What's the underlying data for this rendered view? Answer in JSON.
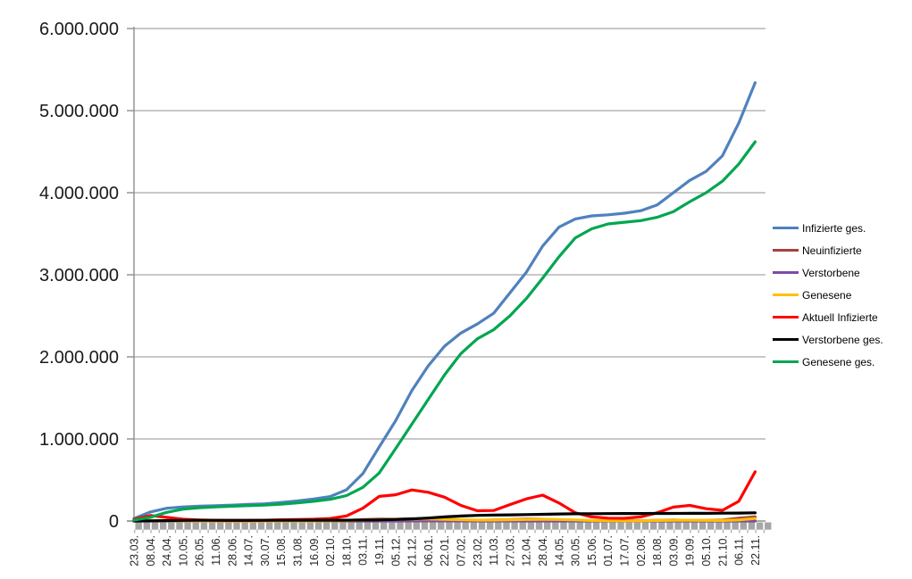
{
  "chart_data": {
    "type": "line",
    "title": "",
    "grid": "horizontal",
    "legend_position": "right",
    "axis_color": "#8f8f8f",
    "gridline_color": "#a6a6a6",
    "tick_band_color": "#a6a6a6",
    "y_axis": {
      "min": 0,
      "max": 6000000,
      "step": 1000000
    },
    "y_tick_labels": [
      "0",
      "1.000.000",
      "2.000.000",
      "3.000.000",
      "4.000.000",
      "5.000.000",
      "6.000.000"
    ],
    "x_labels": [
      "23.03.",
      "08.04.",
      "24.04.",
      "10.05.",
      "26.05.",
      "11.06.",
      "28.06.",
      "14.07.",
      "30.07.",
      "15.08.",
      "31.08.",
      "16.09.",
      "02.10.",
      "18.10.",
      "03.11.",
      "19.11.",
      "05.12.",
      "21.12.",
      "06.01.",
      "22.01.",
      "07.02.",
      "23.02.",
      "11.03.",
      "27.03.",
      "12.04.",
      "28.04.",
      "14.05.",
      "30.05.",
      "15.06.",
      "01.07.",
      "17.07.",
      "02.08.",
      "18.08.",
      "03.09.",
      "19.09.",
      "05.10.",
      "21.10.",
      "06.11.",
      "22.11."
    ],
    "series": [
      {
        "name": "Infizierte ges.",
        "color": "#4F81BD",
        "values": [
          30000,
          110000,
          155000,
          172000,
          181000,
          187000,
          194000,
          202000,
          210000,
          226000,
          245000,
          268000,
          298000,
          380000,
          577000,
          902000,
          1220000,
          1590000,
          1890000,
          2130000,
          2290000,
          2400000,
          2530000,
          2780000,
          3030000,
          3350000,
          3580000,
          3680000,
          3717000,
          3730000,
          3750000,
          3780000,
          3850000,
          4000000,
          4150000,
          4260000,
          4450000,
          4850000,
          5340000
        ]
      },
      {
        "name": "Neuinfizierte",
        "color": "#A5433C",
        "values": [
          4200,
          5000,
          2200,
          1000,
          600,
          400,
          500,
          400,
          700,
          1200,
          1400,
          1900,
          2600,
          7500,
          16000,
          22500,
          22000,
          27500,
          17500,
          14500,
          9500,
          7800,
          12500,
          18500,
          22500,
          21500,
          11500,
          5500,
          1900,
          900,
          1400,
          3100,
          8500,
          11500,
          8000,
          7500,
          13000,
          34000,
          50000
        ]
      },
      {
        "name": "Verstorbene",
        "color": "#7E4BA4",
        "values": [
          90,
          200,
          240,
          180,
          90,
          45,
          25,
          15,
          15,
          15,
          20,
          25,
          40,
          65,
          130,
          260,
          430,
          620,
          840,
          900,
          680,
          480,
          370,
          280,
          250,
          240,
          190,
          140,
          95,
          70,
          55,
          45,
          40,
          55,
          65,
          75,
          90,
          140,
          250
        ]
      },
      {
        "name": "Genesene",
        "color": "#FFC000",
        "values": [
          2500,
          5000,
          3800,
          2400,
          1400,
          800,
          600,
          500,
          700,
          900,
          1100,
          1400,
          1900,
          4200,
          9500,
          14500,
          20000,
          22500,
          25000,
          21000,
          16000,
          11000,
          11500,
          15000,
          18500,
          20500,
          19000,
          13500,
          7000,
          3500,
          1800,
          2600,
          6000,
          10000,
          9500,
          7500,
          7000,
          13000,
          30000
        ]
      },
      {
        "name": "Aktuell Infizierte",
        "color": "#FF0000",
        "values": [
          20000,
          66000,
          45000,
          22000,
          13000,
          9000,
          7000,
          7000,
          10000,
          15000,
          18000,
          22000,
          30000,
          62000,
          155000,
          300000,
          320000,
          378000,
          350000,
          290000,
          190000,
          125000,
          128000,
          200000,
          270000,
          315000,
          220000,
          100000,
          50000,
          35000,
          33000,
          50000,
          100000,
          170000,
          190000,
          150000,
          130000,
          240000,
          600000
        ]
      },
      {
        "name": "Verstorbene ges.",
        "color": "#000000",
        "values": [
          200,
          2000,
          5600,
          7400,
          8300,
          8800,
          9000,
          9100,
          9200,
          9200,
          9300,
          9400,
          9500,
          9800,
          10800,
          13500,
          18500,
          26000,
          36000,
          50000,
          61000,
          68000,
          72500,
          75500,
          78500,
          82000,
          85500,
          88000,
          89500,
          90500,
          91200,
          91700,
          92000,
          92300,
          93000,
          94000,
          95200,
          96500,
          99500
        ]
      },
      {
        "name": "Genesene ges.",
        "color": "#00A651",
        "values": [
          10000,
          46000,
          105000,
          145000,
          162000,
          172000,
          180000,
          187000,
          194000,
          205000,
          221000,
          240000,
          264000,
          310000,
          410000,
          585000,
          880000,
          1180000,
          1480000,
          1780000,
          2040000,
          2220000,
          2330000,
          2500000,
          2710000,
          2960000,
          3220000,
          3450000,
          3560000,
          3620000,
          3640000,
          3660000,
          3700000,
          3770000,
          3890000,
          4000000,
          4140000,
          4350000,
          4620000
        ]
      }
    ]
  }
}
